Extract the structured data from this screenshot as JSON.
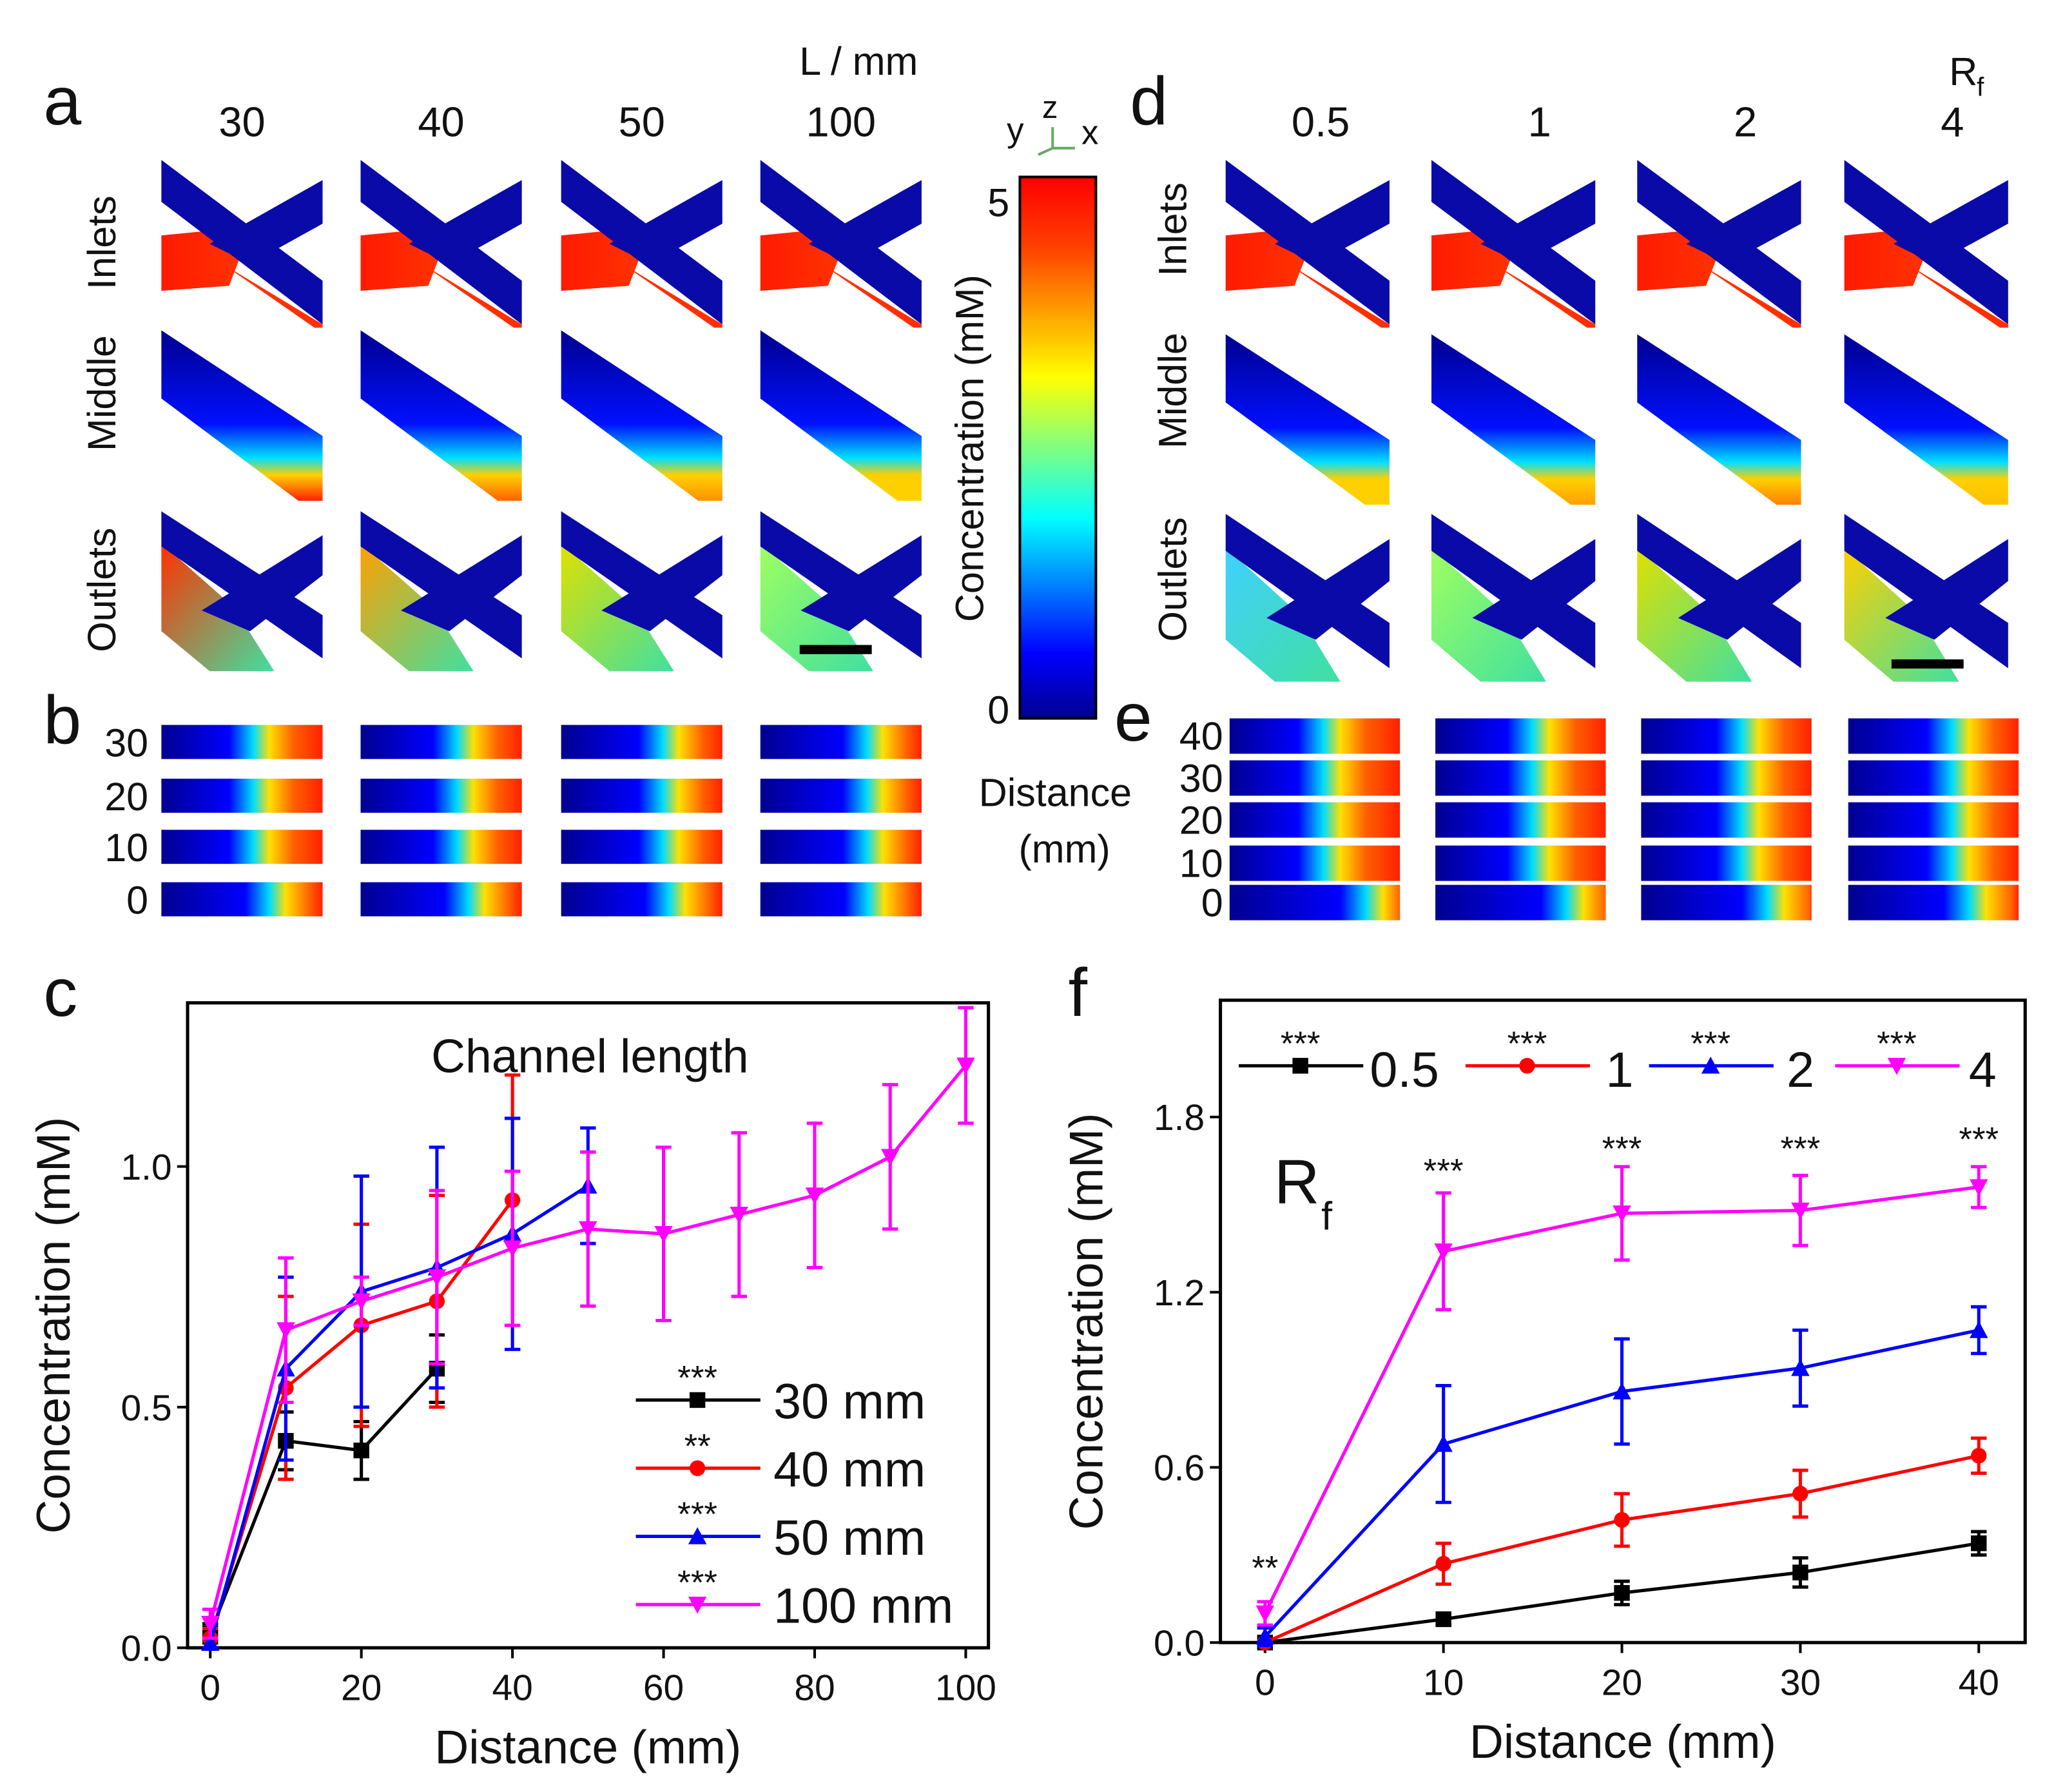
{
  "panels": {
    "a": {
      "label": "a",
      "header": "L / mm",
      "columns": [
        "30",
        "40",
        "50",
        "100"
      ],
      "rows": [
        "Inlets",
        "Middle",
        "Outlets"
      ]
    },
    "b": {
      "label": "b",
      "rows": [
        "30",
        "20",
        "10",
        "0"
      ]
    },
    "d": {
      "label": "d",
      "header": "R",
      "header_sub": "f",
      "columns": [
        "0.5",
        "1",
        "2",
        "4"
      ],
      "rows": [
        "Inlets",
        "Middle",
        "Outlets"
      ]
    },
    "e": {
      "label": "e",
      "rows": [
        "40",
        "30",
        "20",
        "10",
        "0"
      ]
    },
    "c": {
      "label": "c"
    },
    "f": {
      "label": "f"
    }
  },
  "colorbar": {
    "max": "5",
    "min": "0",
    "label": "Concentration (mM)",
    "axes": {
      "y": "y",
      "z": "z",
      "x": "x"
    },
    "distance_label": "Distance",
    "distance_unit": "(mm)",
    "colormap": [
      "#00008f",
      "#0000ff",
      "#00ffff",
      "#80ff80",
      "#ffff00",
      "#ff8000",
      "#ff0000"
    ]
  },
  "chart_data": [
    {
      "type": "line",
      "title": "Channel length",
      "xlabel": "Distance (mm)",
      "ylabel": "Concentration (mM)",
      "xlim": [
        -3,
        103
      ],
      "ylim": [
        0,
        1.34
      ],
      "xticks": [
        "0",
        "20",
        "40",
        "60",
        "80",
        "100"
      ],
      "yticks": [
        "0.0",
        "0.5",
        "1.0"
      ],
      "grid": false,
      "legend": "bottom-right",
      "series": [
        {
          "name": "30 mm",
          "sig": "***",
          "color": "#000000",
          "marker": "square",
          "x": [
            0,
            10,
            20,
            30
          ],
          "y": [
            0.03,
            0.43,
            0.41,
            0.58
          ],
          "err": [
            0.02,
            0.06,
            0.06,
            0.07
          ]
        },
        {
          "name": "40 mm",
          "sig": "**",
          "color": "#ff0000",
          "marker": "circle",
          "x": [
            0,
            10,
            20,
            30,
            40
          ],
          "y": [
            0.02,
            0.54,
            0.67,
            0.72,
            0.93
          ],
          "err": [
            0.02,
            0.19,
            0.21,
            0.22,
            0.26
          ]
        },
        {
          "name": "50 mm",
          "sig": "***",
          "color": "#0000ff",
          "marker": "triangle-up",
          "x": [
            0,
            10,
            20,
            30,
            40,
            50
          ],
          "y": [
            0.01,
            0.58,
            0.74,
            0.79,
            0.86,
            0.96
          ],
          "err": [
            0.01,
            0.19,
            0.24,
            0.25,
            0.24,
            0.12
          ]
        },
        {
          "name": "100 mm",
          "sig": "***",
          "color": "#ff00ff",
          "marker": "triangle-down",
          "x": [
            0,
            10,
            20,
            30,
            40,
            50,
            60,
            70,
            80,
            90,
            100
          ],
          "y": [
            0.05,
            0.66,
            0.72,
            0.77,
            0.83,
            0.87,
            0.86,
            0.9,
            0.94,
            1.02,
            1.21
          ],
          "err": [
            0.03,
            0.15,
            0.05,
            0.18,
            0.16,
            0.16,
            0.18,
            0.17,
            0.15,
            0.15,
            0.12
          ]
        }
      ]
    },
    {
      "type": "line",
      "annotation": "R",
      "annotation_sub": "f",
      "xlabel": "Distance (mm)",
      "ylabel": "Concentration (mM)",
      "xlim": [
        -2.5,
        42.6
      ],
      "ylim": [
        0,
        2.2
      ],
      "xticks": [
        "0",
        "10",
        "20",
        "30",
        "40"
      ],
      "yticks": [
        "0.0",
        "0.6",
        "1.2",
        "1.8"
      ],
      "grid": false,
      "legend": "top",
      "point_sig": [
        "**",
        "***",
        "***",
        "***",
        "***"
      ],
      "series": [
        {
          "name": "0.5",
          "sig": "***",
          "color": "#000000",
          "marker": "square",
          "x": [
            0,
            10,
            20,
            30,
            40
          ],
          "y": [
            0,
            0.08,
            0.17,
            0.24,
            0.34
          ],
          "err": [
            0,
            0.02,
            0.04,
            0.05,
            0.04
          ]
        },
        {
          "name": "1",
          "sig": "***",
          "color": "#ff0000",
          "marker": "circle",
          "x": [
            0,
            10,
            20,
            30,
            40
          ],
          "y": [
            0,
            0.27,
            0.42,
            0.51,
            0.64
          ],
          "err": [
            0,
            0.07,
            0.09,
            0.08,
            0.06
          ]
        },
        {
          "name": "2",
          "sig": "***",
          "color": "#0000ff",
          "marker": "triangle-up",
          "x": [
            0,
            10,
            20,
            30,
            40
          ],
          "y": [
            0.02,
            0.68,
            0.86,
            0.94,
            1.07
          ],
          "err": [
            0.03,
            0.2,
            0.18,
            0.13,
            0.08
          ]
        },
        {
          "name": "4",
          "sig": "***",
          "color": "#ff00ff",
          "marker": "triangle-down",
          "x": [
            0,
            10,
            20,
            30,
            40
          ],
          "y": [
            0.1,
            1.34,
            1.47,
            1.48,
            1.56
          ],
          "err": [
            0.04,
            0.2,
            0.16,
            0.12,
            0.07
          ]
        }
      ]
    }
  ]
}
